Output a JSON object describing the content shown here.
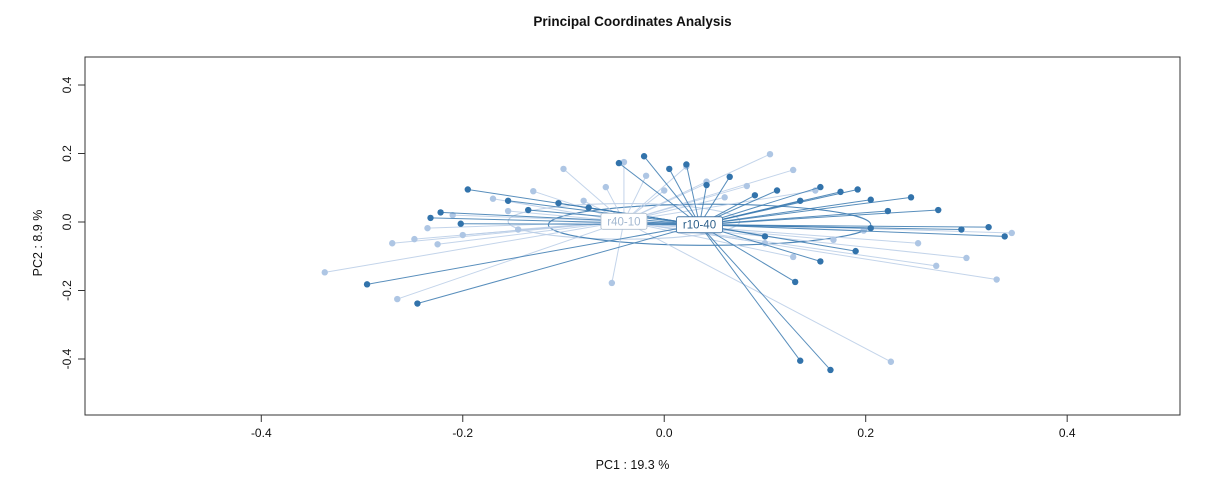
{
  "chart_data": {
    "type": "scatter",
    "title": "Principal Coordinates Analysis",
    "xlabel": "PC1 :  19.3 %",
    "ylabel": "PC2 :  8.9 %",
    "xlim": [
      -0.575,
      0.512
    ],
    "ylim": [
      -0.5635,
      0.4818
    ],
    "xticks": [
      -0.4,
      -0.2,
      0.0,
      0.2,
      0.4
    ],
    "yticks": [
      -0.4,
      -0.2,
      0.0,
      0.2,
      0.4
    ],
    "grid": false,
    "legend_position": "none",
    "groups": [
      {
        "name": "r40-10",
        "point_color": "#aec6e4",
        "line_color": "#b9cde6",
        "label_text_color": "#a3b8d0",
        "label_border_color": "#aebecf",
        "centroid": [
          -0.04,
          0.002
        ],
        "ellipse": {
          "cx": -0.04,
          "cy": 0.002,
          "rx": 0.115,
          "ry": 0.052
        },
        "points": [
          [
            -0.337,
            -0.147
          ],
          [
            -0.27,
            -0.062
          ],
          [
            -0.265,
            -0.225
          ],
          [
            -0.248,
            -0.05
          ],
          [
            -0.235,
            -0.018
          ],
          [
            -0.225,
            -0.065
          ],
          [
            -0.21,
            0.02
          ],
          [
            -0.2,
            -0.038
          ],
          [
            -0.17,
            0.068
          ],
          [
            -0.155,
            0.032
          ],
          [
            -0.145,
            -0.022
          ],
          [
            -0.13,
            0.09
          ],
          [
            -0.1,
            0.155
          ],
          [
            -0.08,
            0.062
          ],
          [
            -0.058,
            0.102
          ],
          [
            -0.04,
            0.175
          ],
          [
            -0.018,
            0.135
          ],
          [
            0.0,
            0.092
          ],
          [
            0.022,
            0.162
          ],
          [
            0.042,
            0.118
          ],
          [
            0.06,
            0.072
          ],
          [
            0.082,
            0.105
          ],
          [
            0.105,
            0.198
          ],
          [
            0.128,
            0.152
          ],
          [
            0.15,
            0.092
          ],
          [
            0.1,
            -0.062
          ],
          [
            0.128,
            -0.102
          ],
          [
            0.168,
            -0.052
          ],
          [
            0.198,
            -0.025
          ],
          [
            0.225,
            -0.408
          ],
          [
            0.252,
            -0.062
          ],
          [
            0.27,
            -0.128
          ],
          [
            0.3,
            -0.105
          ],
          [
            0.33,
            -0.168
          ],
          [
            0.345,
            -0.032
          ],
          [
            -0.052,
            -0.178
          ]
        ]
      },
      {
        "name": "r10-40",
        "point_color": "#3273ab",
        "line_color": "#3b7ab0",
        "label_text_color": "#2c5f8a",
        "label_border_color": "#4a7aa8",
        "centroid": [
          0.035,
          -0.008
        ],
        "ellipse": {
          "cx": 0.045,
          "cy": -0.008,
          "rx": 0.16,
          "ry": 0.06
        },
        "points": [
          [
            -0.295,
            -0.182
          ],
          [
            -0.245,
            -0.238
          ],
          [
            -0.232,
            0.012
          ],
          [
            -0.222,
            0.028
          ],
          [
            -0.202,
            -0.005
          ],
          [
            -0.195,
            0.095
          ],
          [
            -0.155,
            0.062
          ],
          [
            -0.135,
            0.035
          ],
          [
            -0.105,
            0.055
          ],
          [
            -0.075,
            0.042
          ],
          [
            -0.045,
            0.172
          ],
          [
            -0.02,
            0.192
          ],
          [
            0.005,
            0.155
          ],
          [
            0.022,
            0.168
          ],
          [
            0.042,
            0.108
          ],
          [
            0.065,
            0.132
          ],
          [
            0.09,
            0.078
          ],
          [
            0.112,
            0.092
          ],
          [
            0.135,
            0.062
          ],
          [
            0.155,
            0.102
          ],
          [
            0.175,
            0.088
          ],
          [
            0.192,
            0.095
          ],
          [
            0.205,
            0.065
          ],
          [
            0.222,
            0.032
          ],
          [
            0.245,
            0.072
          ],
          [
            0.272,
            0.035
          ],
          [
            0.295,
            -0.022
          ],
          [
            0.322,
            -0.015
          ],
          [
            0.338,
            -0.042
          ],
          [
            0.13,
            -0.175
          ],
          [
            0.155,
            -0.115
          ],
          [
            0.19,
            -0.085
          ],
          [
            0.135,
            -0.405
          ],
          [
            0.165,
            -0.432
          ],
          [
            0.205,
            -0.018
          ],
          [
            0.1,
            -0.042
          ]
        ]
      }
    ]
  }
}
